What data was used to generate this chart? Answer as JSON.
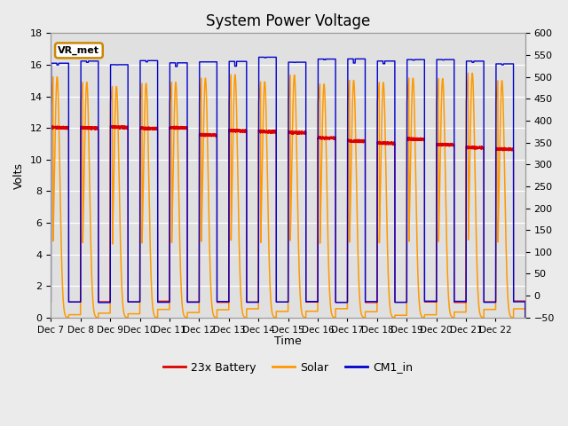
{
  "title": "System Power Voltage",
  "xlabel": "Time",
  "ylabel_left": "Volts",
  "ylim_left": [
    0,
    18
  ],
  "ylim_right": [
    -50,
    600
  ],
  "yticks_left": [
    0,
    2,
    4,
    6,
    8,
    10,
    12,
    14,
    16,
    18
  ],
  "yticks_right": [
    -50,
    0,
    50,
    100,
    150,
    200,
    250,
    300,
    350,
    400,
    450,
    500,
    550,
    600
  ],
  "xtick_labels": [
    "Dec 7",
    "Dec 8",
    "Dec 9",
    "Dec 10",
    "Dec 11",
    "Dec 12",
    "Dec 13",
    "Dec 14",
    "Dec 15",
    "Dec 16",
    "Dec 17",
    "Dec 18",
    "Dec 19",
    "Dec 20",
    "Dec 21",
    "Dec 22"
  ],
  "n_days": 16,
  "fig_width": 6.4,
  "fig_height": 4.8,
  "dpi": 100,
  "background_color": "#ebebeb",
  "plot_bg_color": "#e0e0e0",
  "grid_color": "#ffffff",
  "battery_color": "#dd0000",
  "solar_color": "#ff9900",
  "cm1_color": "#0000cc",
  "vr_met_box_facecolor": "#ffffff",
  "vr_met_box_edgecolor": "#cc8800",
  "title_fontsize": 12,
  "axis_label_fontsize": 9,
  "tick_fontsize": 8,
  "legend_fontsize": 9
}
